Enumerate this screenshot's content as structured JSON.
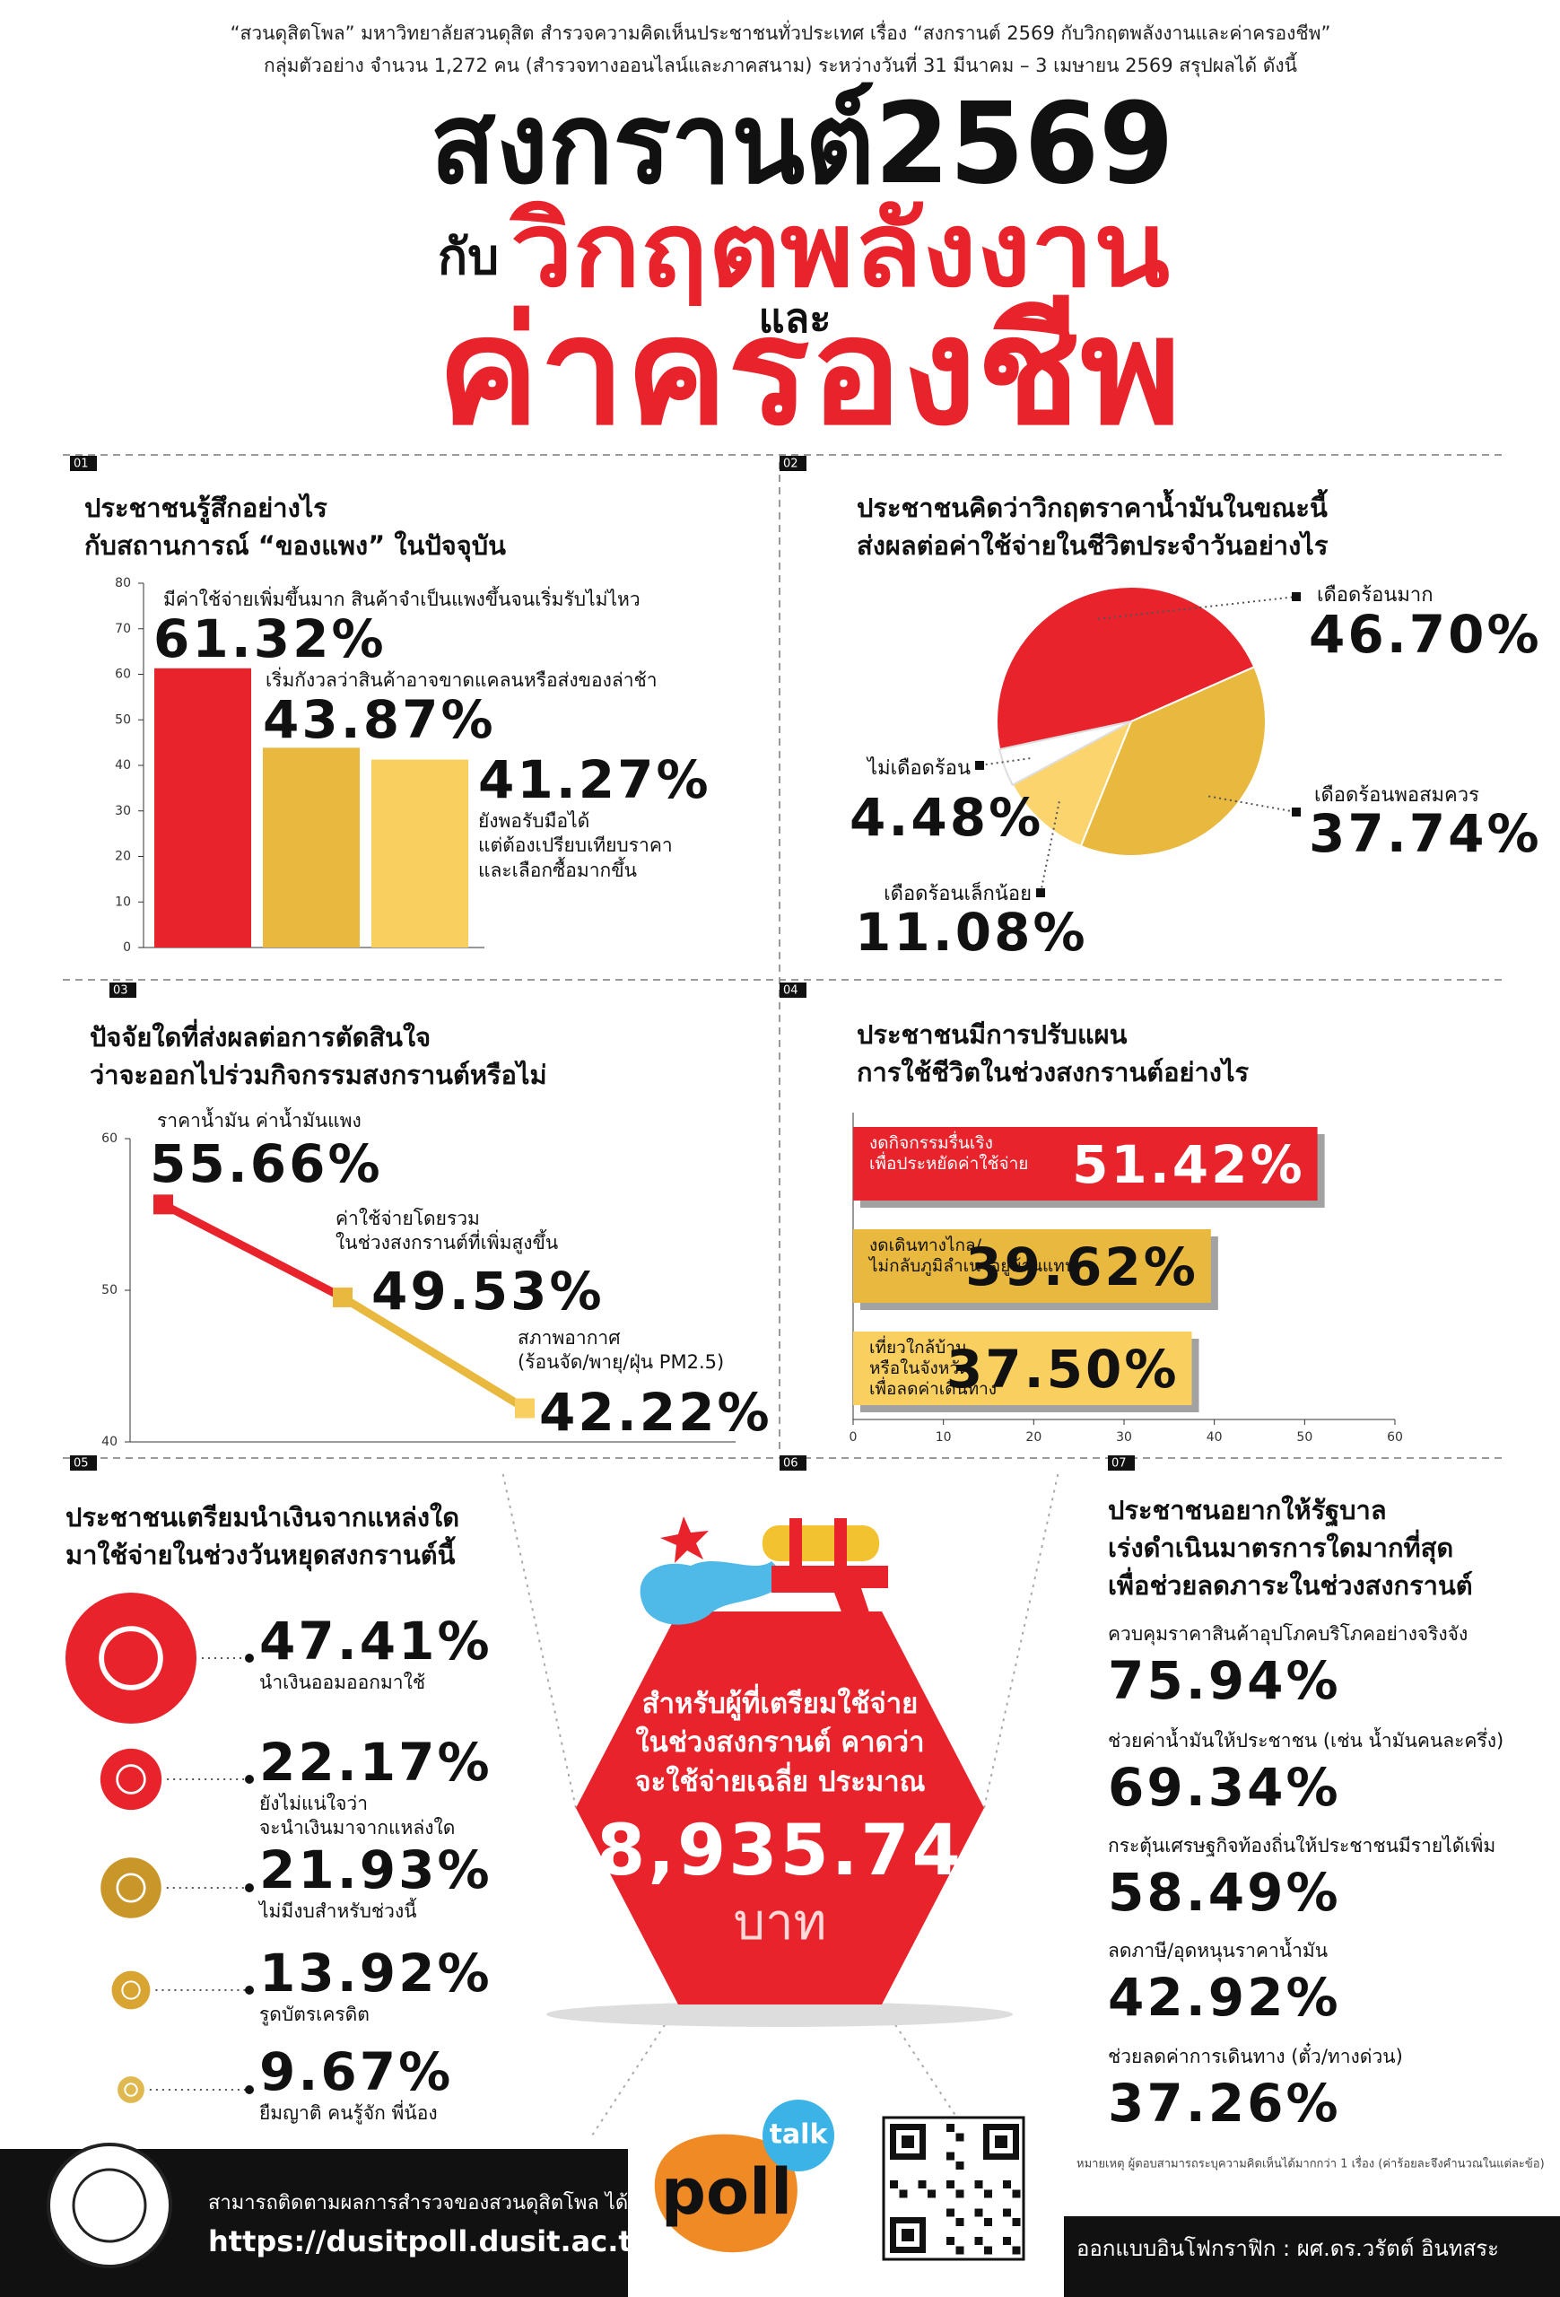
{
  "header": {
    "intro": [
      "“สวนดุสิตโพล” มหาวิทยาลัยสวนดุสิต สำรวจความคิดเห็นประชาชนทั่วประเทศ  เรื่อง “สงกรานต์ 2569 กับวิกฤตพลังงานและค่าครองชีพ”",
      "กลุ่มตัวอย่าง จำนวน 1,272 คน  (สำรวจทางออนไลน์และภาคสนาม) ระหว่างวันที่ 31 มีนาคม –  3 เมษายน 2569  สรุปผลได้ ดังนี้"
    ],
    "title_main": "สงกรานต์2569",
    "title_with": "กับ",
    "title_crisis": "วิกฤตพลังงาน",
    "title_and": "และ",
    "title_cost": "ค่าครองชีพ"
  },
  "chart_data": [
    {
      "section": "01",
      "type": "bar",
      "title": "ประชาชนรู้สึกอย่างไร\nกับสถานการณ์ “ของแพง” ในปัจจุบัน",
      "categories": [
        "มีค่าใช้จ่ายเพิ่มขึ้นมาก สินค้าจำเป็นแพงขึ้นจนเริ่มรับไม่ไหว",
        "เริ่มกังวลว่าสินค้าอาจขาดแคลนหรือส่งของล่าช้า",
        "ยังพอรับมือได้\nแต่ต้องเปรียบเทียบราคา\nและเลือกซื้อมากขึ้น"
      ],
      "values": [
        61.32,
        43.87,
        41.27
      ],
      "value_labels": [
        "61.32%",
        "43.87%",
        "41.27%"
      ],
      "colors": [
        "#e8232b",
        "#e8b83f",
        "#f9cf5f"
      ],
      "ylim": [
        0,
        80
      ],
      "yticks": [
        0,
        10,
        20,
        30,
        40,
        50,
        60,
        70,
        80
      ]
    },
    {
      "section": "02",
      "type": "pie",
      "title": "ประชาชนคิดว่าวิกฤตราคาน้ำมันในขณะนี้\nส่งผลต่อค่าใช้จ่ายในชีวิตประจำวันอย่างไร",
      "categories": [
        "เดือดร้อนมาก",
        "เดือดร้อนพอสมควร",
        "เดือดร้อนเล็กน้อย",
        "ไม่เดือดร้อน"
      ],
      "values": [
        46.7,
        37.74,
        11.08,
        4.48
      ],
      "value_labels": [
        "46.70%",
        "37.74%",
        "11.08%",
        "4.48%"
      ],
      "colors": [
        "#e8232b",
        "#e8b83f",
        "#fbd46e",
        "#ffffff"
      ]
    },
    {
      "section": "03",
      "type": "line",
      "title": "ปัจจัยใดที่ส่งผลต่อการตัดสินใจ\nว่าจะออกไปร่วมกิจกรรมสงกรานต์หรือไม่",
      "categories": [
        "ราคาน้ำมัน ค่าน้ำมันแพง",
        "ค่าใช้จ่ายโดยรวม\nในช่วงสงกรานต์ที่เพิ่มสูงขึ้น",
        "สภาพอากาศ\n(ร้อนจัด/พายุ/ฝุ่น PM2.5)"
      ],
      "values": [
        55.66,
        49.53,
        42.22
      ],
      "value_labels": [
        "55.66%",
        "49.53%",
        "42.22%"
      ],
      "colors": [
        "#e8232b",
        "#e8b83f",
        "#f9cf5f"
      ],
      "ylim": [
        40,
        60
      ],
      "yticks": [
        40,
        50,
        60
      ]
    },
    {
      "section": "04",
      "type": "hbar",
      "title": "ประชาชนมีการปรับแผน\nการใช้ชีวิตในช่วงสงกรานต์อย่างไร",
      "categories": [
        "งดกิจกรรมรื่นเริง\nเพื่อประหยัดค่าใช้จ่าย",
        "งดเดินทางไกล/\nไม่กลับภูมิลำเนาอยู่บ้านแทน",
        "เที่ยวใกล้บ้าน\nหรือในจังหวัด\nเพื่อลดค่าเดินทาง"
      ],
      "values": [
        51.42,
        39.62,
        37.5
      ],
      "value_labels": [
        "51.42%",
        "39.62%",
        "37.50%"
      ],
      "colors": [
        "#e8232b",
        "#e8b83f",
        "#f9cf5f"
      ],
      "xlim": [
        0,
        60
      ],
      "xticks": [
        0,
        10,
        20,
        30,
        40,
        50,
        60
      ]
    },
    {
      "section": "05",
      "type": "bubble",
      "title": "ประชาชนเตรียมนำเงินจากแหล่งใด\nมาใช้จ่ายในช่วงวันหยุดสงกรานต์นี้",
      "categories": [
        "นำเงินออมออกมาใช้",
        "ยังไม่แน่ใจว่า\nจะนำเงินมาจากแหล่งใด",
        "ไม่มีงบสำหรับช่วงนี้",
        "รูดบัตรเครดิต",
        "ยืมญาติ คนรู้จัก พี่น้อง"
      ],
      "values": [
        47.41,
        22.17,
        21.93,
        13.92,
        9.67
      ],
      "value_labels": [
        "47.41%",
        "22.17%",
        "21.93%",
        "13.92%",
        "9.67%"
      ],
      "colors": [
        "#e8232b",
        "#e8232b",
        "#c9962a",
        "#d9a532",
        "#e0b850"
      ]
    },
    {
      "section": "07",
      "type": "list",
      "title": "ประชาชนอยากให้รัฐบาล\nเร่งดำเนินมาตรการใดมากที่สุด\nเพื่อช่วยลดภาระในช่วงสงกรานต์",
      "categories": [
        "ควบคุมราคาสินค้าอุปโภคบริโภคอย่างจริงจัง",
        "ช่วยค่าน้ำมันให้ประชาชน (เช่น น้ำมันคนละครึ่ง)",
        "กระตุ้นเศรษฐกิจท้องถิ่นให้ประชาชนมีรายได้เพิ่ม",
        "ลดภาษี/อุดหนุนราคาน้ำมัน",
        "ช่วยลดค่าการเดินทาง (ตั๋ว/ทางด่วน)"
      ],
      "values": [
        75.94,
        69.34,
        58.49,
        42.92,
        37.26
      ],
      "value_labels": [
        "75.94%",
        "69.34%",
        "58.49%",
        "42.92%",
        "37.26%"
      ]
    }
  ],
  "highlight": {
    "section": "06",
    "text": "สำหรับผู้ที่เตรียมใช้จ่าย\nในช่วงสงกรานต์ คาดว่า\nจะใช้จ่ายเฉลี่ย ประมาณ",
    "amount": "8,935.74",
    "unit": "บาท"
  },
  "footer": {
    "follow": "สามารถติดตามผลการสำรวจของสวนดุสิตโพล ได้ที่",
    "url": "https://dusitpoll.dusit.ac.th",
    "talk": "talk",
    "poll": "poll",
    "note": "หมายเหตุ   ผู้ตอบสามารถระบุความคิดเห็นได้มากกว่า 1 เรื่อง (ค่าร้อยละจึงคำนวณในแต่ละข้อ)",
    "designer": "ออกแบบอินโฟกราฟิก : ผศ.ดร.วรัตต์ อินทสระ"
  }
}
